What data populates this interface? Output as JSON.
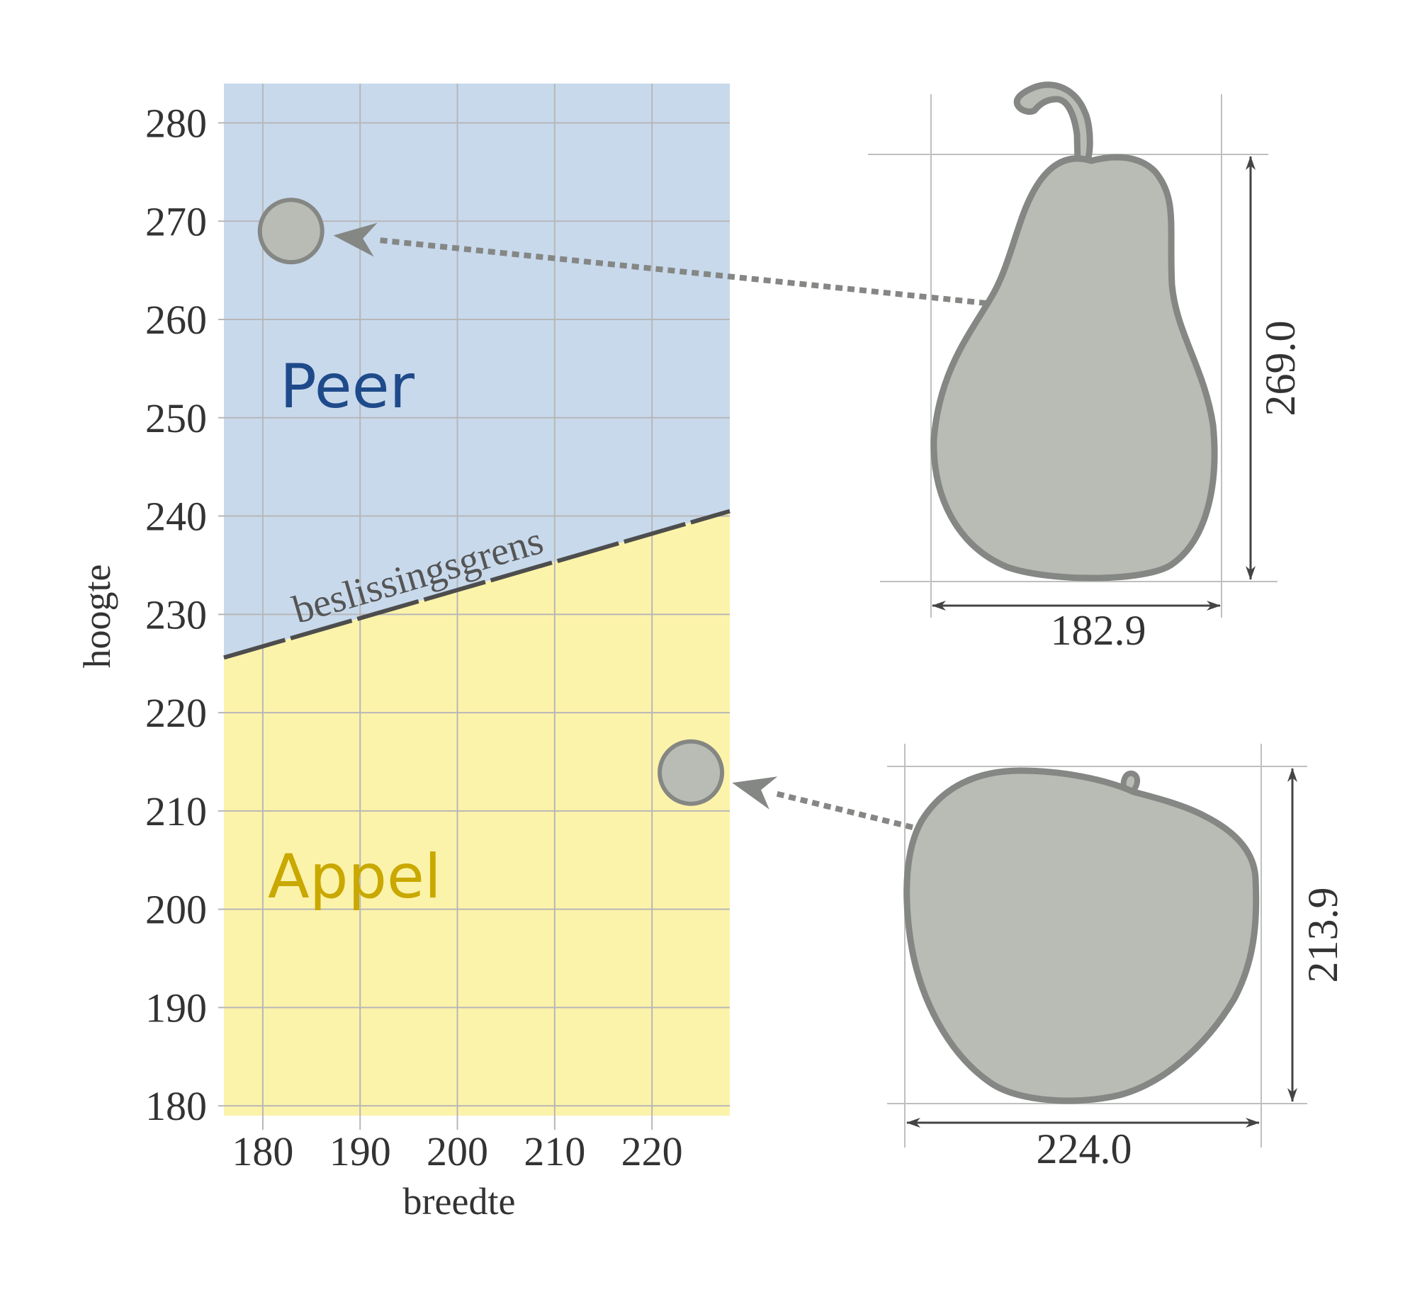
{
  "chart_data": {
    "type": "scatter",
    "xlabel": "breedte",
    "ylabel": "hoogte",
    "xlim": [
      176,
      228
    ],
    "ylim": [
      179,
      284
    ],
    "xticks": [
      180,
      190,
      200,
      210,
      220
    ],
    "yticks": [
      180,
      190,
      200,
      210,
      220,
      230,
      240,
      250,
      260,
      270,
      280
    ],
    "grid": true,
    "regions": [
      {
        "label": "Peer",
        "side": "above",
        "color": "#c8d9ec",
        "label_color": "#1f4a8a"
      },
      {
        "label": "Appel",
        "side": "below",
        "color": "#fcf3aa",
        "label_color": "#c9a800"
      }
    ],
    "decision_boundary": {
      "label": "beslissingsgrens",
      "points": [
        [
          176,
          225.6
        ],
        [
          228,
          240.5
        ]
      ],
      "color": "#4d4d4d"
    },
    "points": [
      {
        "x": 182.9,
        "y": 269.0
      },
      {
        "x": 224.0,
        "y": 213.9
      }
    ],
    "point_color": "#b9bcb4",
    "point_edge_color": "#858784"
  },
  "fruits": {
    "pear": {
      "width_label": "182.9",
      "height_label": "269.0",
      "icon": "pear-icon"
    },
    "apple": {
      "width_label": "224.0",
      "height_label": "213.9",
      "icon": "apple-icon"
    }
  },
  "colors": {
    "grid": "#b7b7b7",
    "fruit_fill": "#b9bcb4",
    "fruit_stroke": "#858784",
    "arrow": "#858784",
    "dimension": "#444444"
  }
}
